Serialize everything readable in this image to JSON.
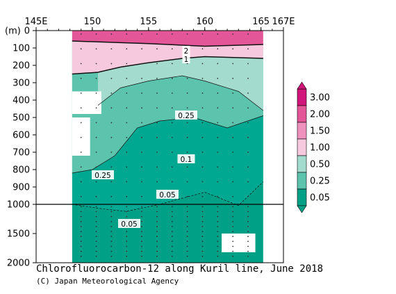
{
  "chart_data": {
    "type": "heatmap",
    "title": "Chlorofluorocarbon-12 along Kuril line, June 2018",
    "credit": "(C) Japan Meteorological Agency",
    "x_axis": {
      "range": [
        145,
        167
      ],
      "ticks": [
        {
          "value": 145,
          "label": "145E"
        },
        {
          "value": 150,
          "label": "150"
        },
        {
          "value": 155,
          "label": "155"
        },
        {
          "value": 160,
          "label": "160"
        },
        {
          "value": 165,
          "label": "165"
        },
        {
          "value": 167,
          "label": "167E"
        }
      ]
    },
    "y_axis": {
      "unit_label": "(m)",
      "upper_ticks": [
        0,
        100,
        200,
        300,
        400,
        500,
        600,
        700,
        800,
        900,
        1000
      ],
      "lower_ticks": [
        1500,
        2000
      ],
      "break_depth": 1000,
      "range": [
        0,
        2000
      ]
    },
    "colorbar": {
      "levels": [
        "0.05",
        "0.25",
        "0.50",
        "1.00",
        "1.50",
        "2.00",
        "3.00"
      ],
      "colors": [
        "#00a087",
        "#00a892",
        "#5cc3ad",
        "#a3dccf",
        "#d3ede7",
        "#f7c9de",
        "#ef91bd",
        "#e35698",
        "#d0167a"
      ]
    },
    "contour_labels": [
      "2",
      "1",
      "0.25",
      "0.25",
      "0.1",
      "0.05",
      "0.05"
    ],
    "section_data": {
      "lon_range": [
        148.2,
        165.2
      ],
      "boundaries": [
        {
          "value": 2.0,
          "depth_m": [
            [
              148.2,
              60
            ],
            [
              155,
              75
            ],
            [
              160,
              90
            ],
            [
              165.2,
              80
            ]
          ]
        },
        {
          "value": 1.0,
          "depth_m": [
            [
              148.2,
              250
            ],
            [
              150.5,
              240
            ],
            [
              152.5,
              210
            ],
            [
              155,
              185
            ],
            [
              158,
              160
            ],
            [
              160,
              150
            ],
            [
              165.2,
              160
            ]
          ]
        },
        {
          "value": 0.5,
          "depth_m": [
            [
              150.5,
              430
            ],
            [
              152.5,
              330
            ],
            [
              155,
              290
            ],
            [
              158,
              260
            ],
            [
              160,
              290
            ],
            [
              163,
              350
            ],
            [
              165.2,
              460
            ]
          ]
        },
        {
          "value": 0.25,
          "depth_m": [
            [
              148.2,
              820
            ],
            [
              150,
              800
            ],
            [
              152,
              720
            ],
            [
              154,
              560
            ],
            [
              156,
              520
            ],
            [
              159,
              500
            ],
            [
              162,
              560
            ],
            [
              165.2,
              490
            ]
          ]
        },
        {
          "value": 0.05,
          "depth_m": [
            [
              148.2,
              1000
            ],
            [
              151,
              1080
            ],
            [
              153,
              1120
            ],
            [
              156,
              1000
            ],
            [
              160,
              930
            ],
            [
              163,
              1020
            ],
            [
              165.2,
              870
            ]
          ]
        }
      ],
      "no_data_regions_m": [
        [
          148.2,
          150.8,
          350,
          480
        ],
        [
          148.2,
          149.8,
          500,
          720
        ],
        [
          161.5,
          164.5,
          1500,
          1820
        ]
      ]
    }
  }
}
